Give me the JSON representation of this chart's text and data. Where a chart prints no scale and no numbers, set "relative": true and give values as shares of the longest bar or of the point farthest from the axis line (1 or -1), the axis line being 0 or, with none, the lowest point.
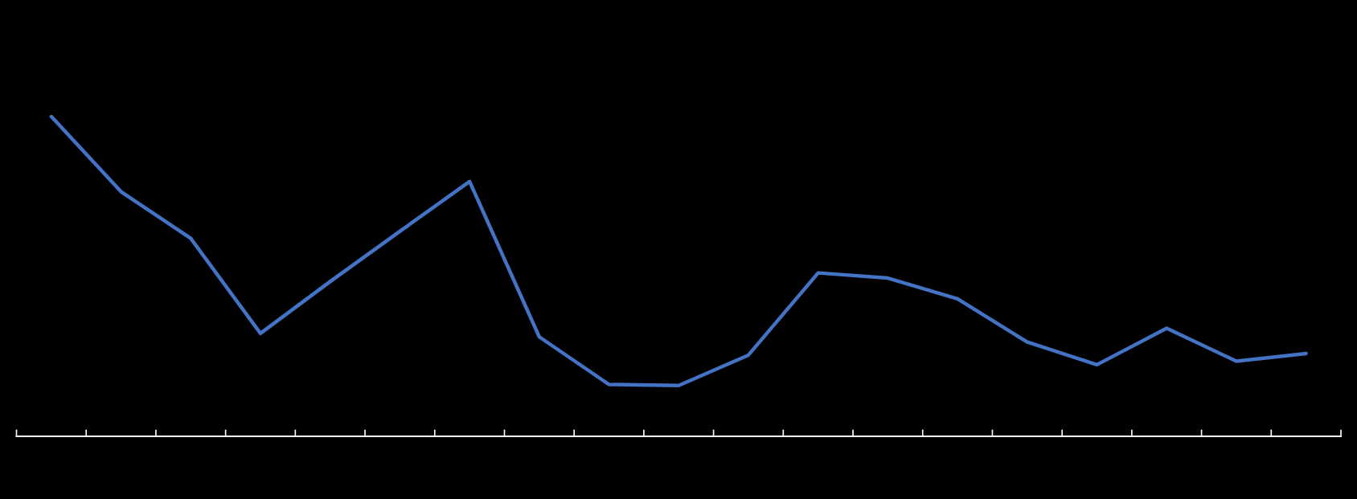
{
  "chart_data": {
    "type": "line",
    "relative": true,
    "categories": [
      null,
      null,
      null,
      null,
      null,
      null,
      null,
      null,
      null,
      null,
      null,
      null,
      null,
      null,
      null,
      null,
      null,
      null,
      null
    ],
    "series": [
      {
        "color": "#4472c4",
        "values": [
          1,
          0.765,
          0.619,
          0.322,
          0.484,
          0.641,
          0.797,
          0.311,
          0.162,
          0.159,
          0.254,
          0.511,
          0.495,
          0.43,
          0.295,
          0.224,
          0.338,
          0.235,
          0.259
        ]
      }
    ],
    "grid": false,
    "marker": "none",
    "line_style": "solid"
  }
}
